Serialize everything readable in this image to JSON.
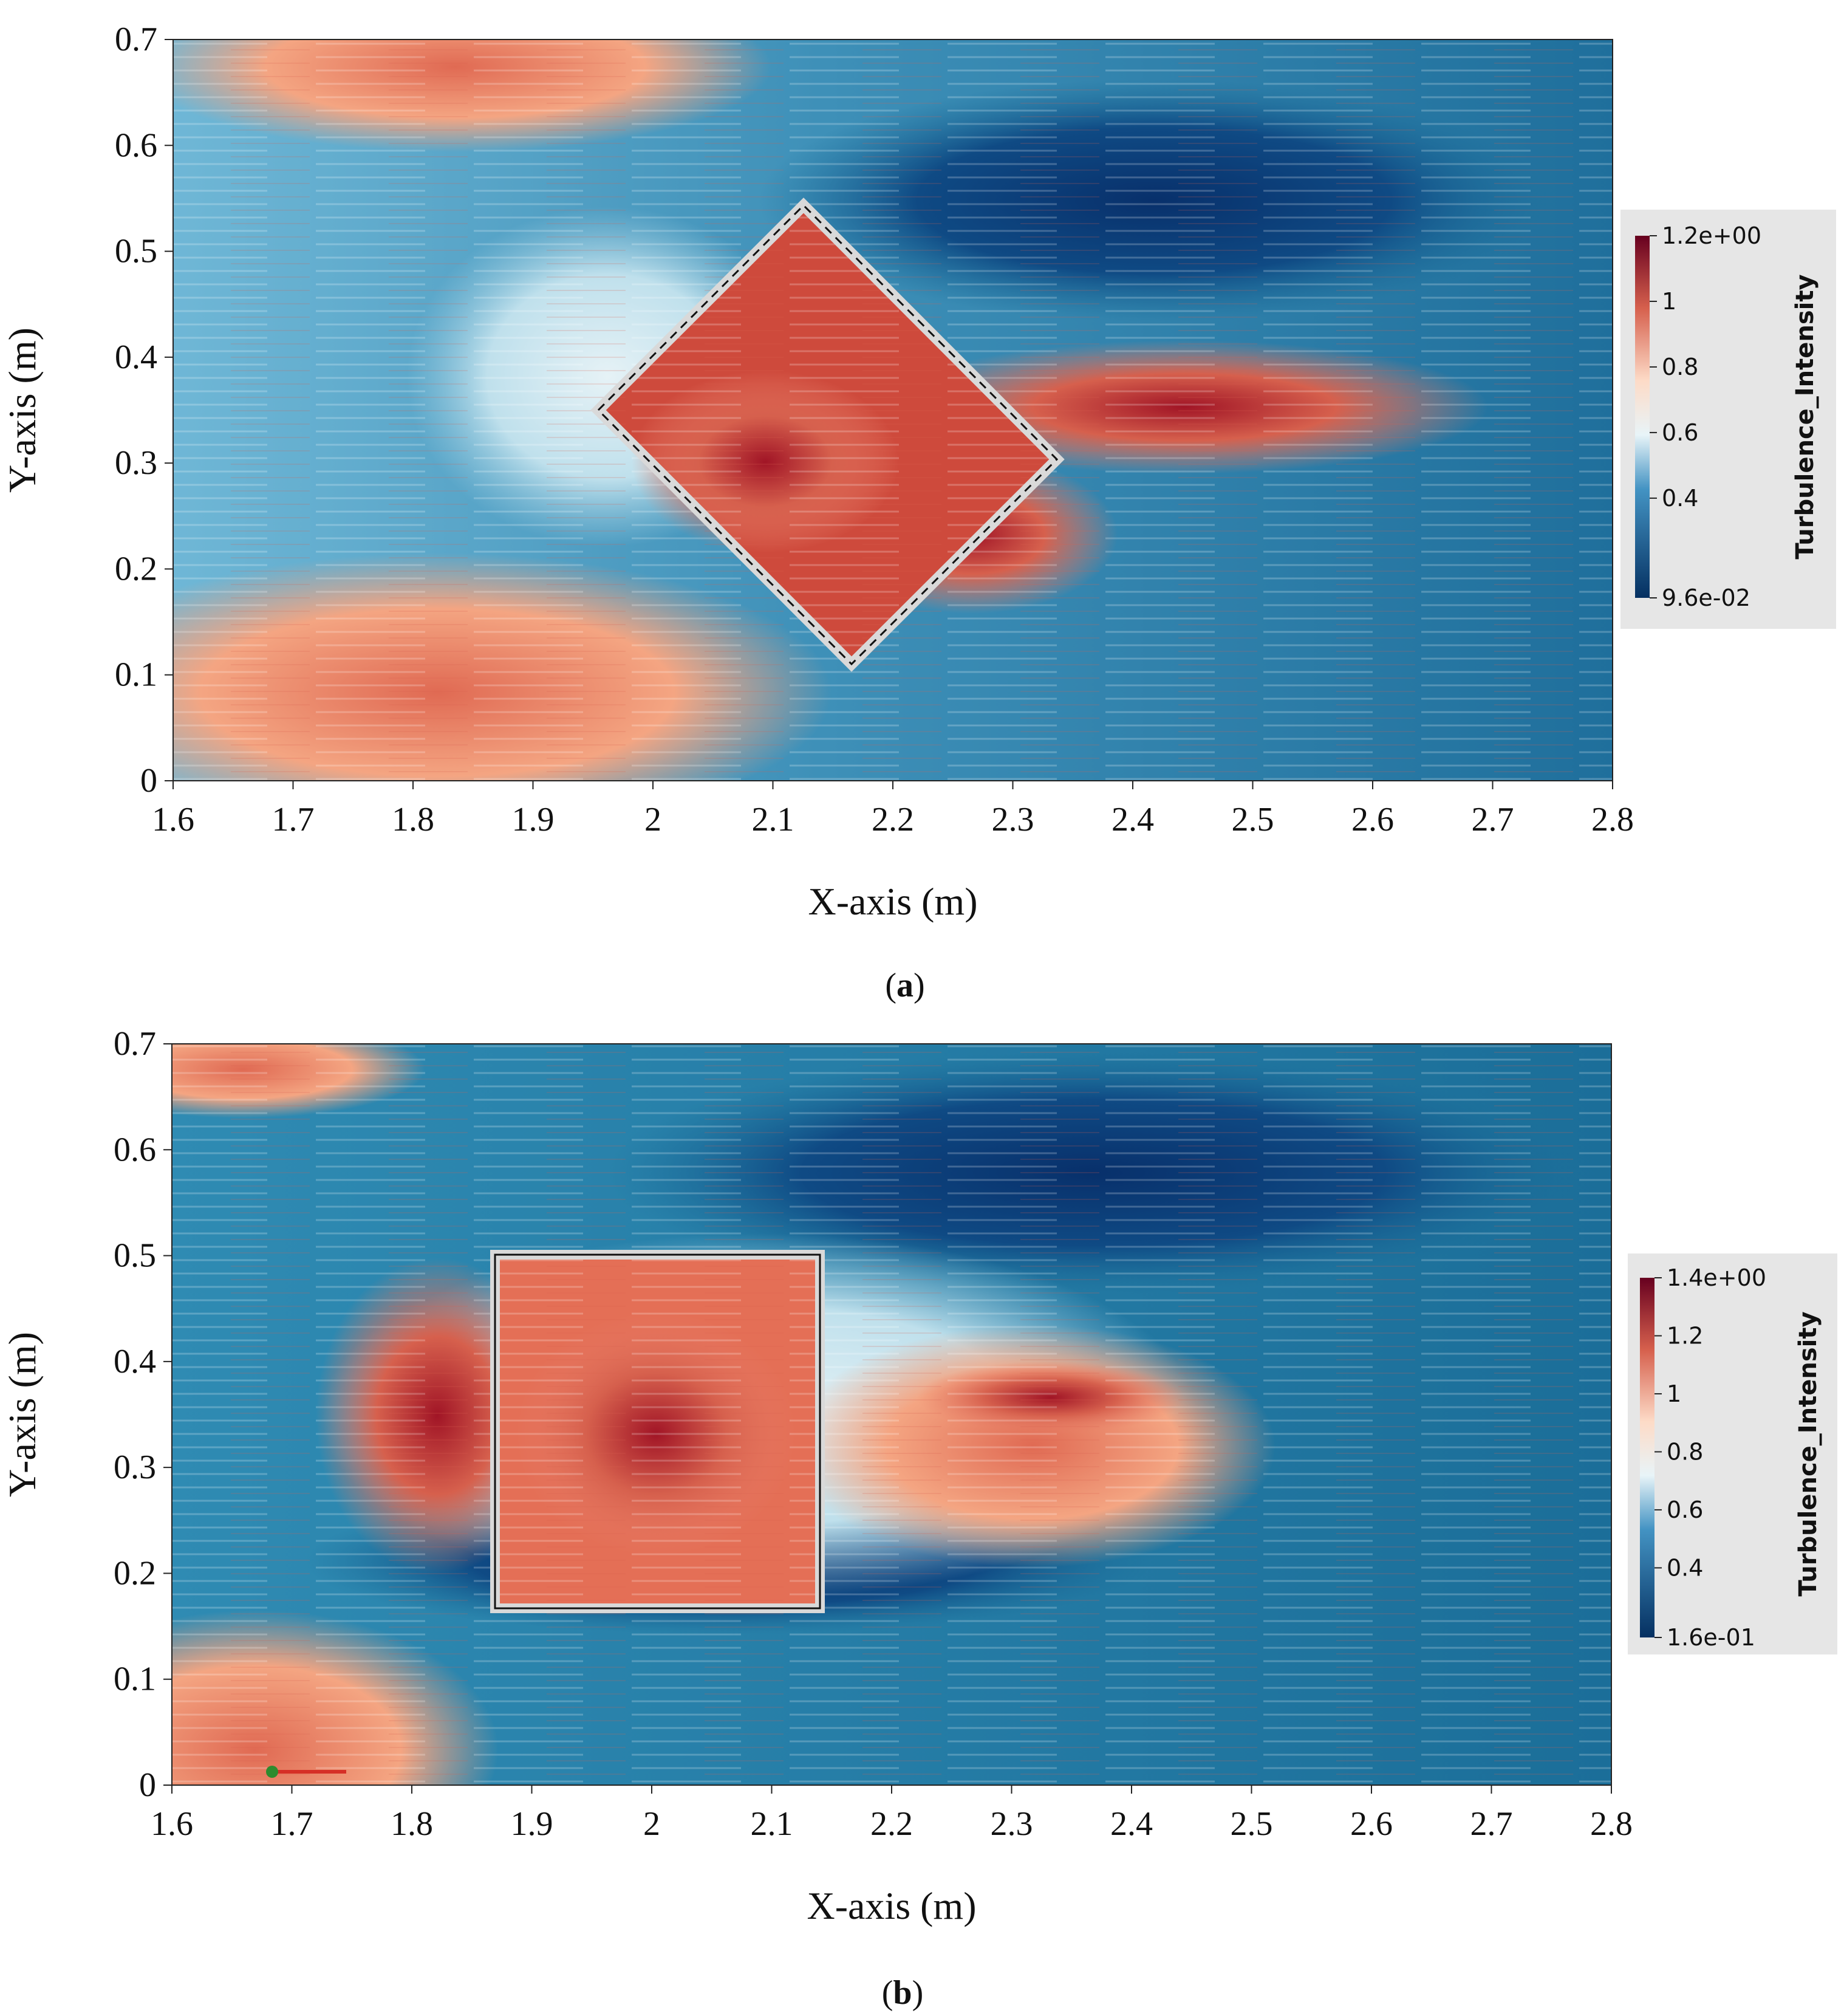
{
  "chart_data": [
    {
      "type": "heatmap",
      "panel_label": "a",
      "xlabel": "X-axis (m)",
      "ylabel": "Y-axis (m)",
      "xlim": [
        1.6,
        2.8
      ],
      "ylim": [
        0,
        0.7
      ],
      "xticks": [
        "1.6",
        "1.7",
        "1.8",
        "1.9",
        "2",
        "2.1",
        "2.2",
        "2.3",
        "2.4",
        "2.5",
        "2.6",
        "2.7",
        "2.8"
      ],
      "yticks": [
        "0",
        "0.1",
        "0.2",
        "0.3",
        "0.4",
        "0.5",
        "0.6",
        "0.7"
      ],
      "colorbar": {
        "title": "Turbulence_Intensity",
        "range": [
          0.096,
          1.2
        ],
        "labels": [
          "1.2e+00",
          "1",
          "0.8",
          "0.6",
          "0.4",
          "9.6e-02"
        ],
        "values": [
          1.2,
          1.0,
          0.8,
          0.6,
          0.4,
          0.096
        ]
      },
      "structure": {
        "shape": "rotated-square",
        "corners": [
          [
            1.95,
            0.35
          ],
          [
            2.12,
            0.52
          ],
          [
            2.33,
            0.31
          ],
          [
            2.16,
            0.14
          ]
        ]
      }
    },
    {
      "type": "heatmap",
      "panel_label": "b",
      "xlabel": "X-axis (m)",
      "ylabel": "Y-axis (m)",
      "xlim": [
        1.6,
        2.8
      ],
      "ylim": [
        0,
        0.7
      ],
      "xticks": [
        "1.6",
        "1.7",
        "1.8",
        "1.9",
        "2",
        "2.1",
        "2.2",
        "2.3",
        "2.4",
        "2.5",
        "2.6",
        "2.7",
        "2.8"
      ],
      "yticks": [
        "0",
        "0.1",
        "0.2",
        "0.3",
        "0.4",
        "0.5",
        "0.6",
        "0.7"
      ],
      "colorbar": {
        "title": "Turbulence_Intensity",
        "range": [
          0.16,
          1.4
        ],
        "labels": [
          "1.4e+00",
          "1.2",
          "1",
          "0.8",
          "0.6",
          "0.4",
          "1.6e-01"
        ],
        "values": [
          1.4,
          1.2,
          1.0,
          0.8,
          0.6,
          0.4,
          0.16
        ]
      },
      "structure": {
        "shape": "square",
        "corners": [
          [
            1.87,
            0.5
          ],
          [
            2.14,
            0.5
          ],
          [
            2.14,
            0.21
          ],
          [
            1.87,
            0.21
          ]
        ]
      }
    }
  ]
}
